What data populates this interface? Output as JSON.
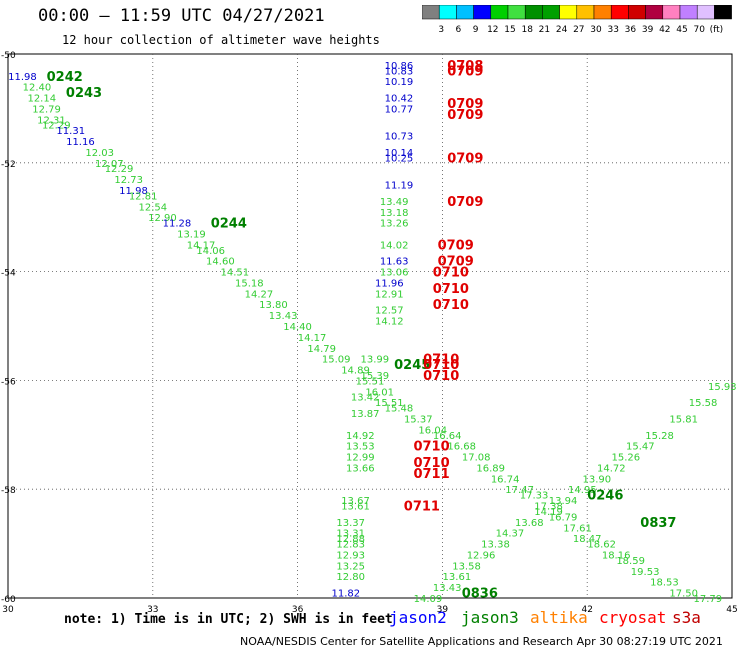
{
  "header": {
    "title": "00:00 – 11:59 UTC 04/27/2021",
    "subtitle": "12 hour collection of altimeter wave heights"
  },
  "color_scale": {
    "colors": [
      "#808080",
      "#00ffff",
      "#00c0ff",
      "#0000ff",
      "#00d000",
      "#40e040",
      "#009000",
      "#00a000",
      "#ffff00",
      "#ffc000",
      "#ff8000",
      "#ff0000",
      "#d00000",
      "#b00040",
      "#ff80c0",
      "#c080ff",
      "#e0c0ff",
      "#000000"
    ],
    "labels": [
      "3",
      "6",
      "9",
      "12",
      "15",
      "18",
      "21",
      "24",
      "27",
      "30",
      "33",
      "36",
      "39",
      "42",
      "45",
      "70",
      "(ft)"
    ]
  },
  "note": "note: 1) Time is in UTC; 2) SWH is in feet",
  "legend": [
    {
      "name": "jason2",
      "color": "#0000ff"
    },
    {
      "name": "jason3",
      "color": "#008000"
    },
    {
      "name": "altika",
      "color": "#ff8000"
    },
    {
      "name": "cryosat",
      "color": "#ff0000"
    },
    {
      "name": "s3a",
      "color": "#c00000"
    }
  ],
  "footer": "NOAA/NESDIS Center for Satellite Applications and Research   Apr 30 08:27:19 UTC 2021",
  "chart_data": {
    "type": "scatter",
    "x_ticks": [
      "30",
      "33",
      "36",
      "39",
      "42",
      "45"
    ],
    "y_ticks": [
      "-50",
      "-52",
      "-54",
      "-56",
      "-58",
      "-60"
    ],
    "xlim": [
      30,
      45
    ],
    "ylim": [
      -60,
      -50
    ],
    "grid": true,
    "colors": {
      "green": "#33cc33",
      "dkgreen": "#008000",
      "blue": "#0000cc",
      "red": "#e00000"
    },
    "points": [
      {
        "x": 30.3,
        "y": -50.4,
        "label": "11.98",
        "c": "blue"
      },
      {
        "x": 30.6,
        "y": -50.6,
        "label": "12.40",
        "c": "green"
      },
      {
        "x": 30.7,
        "y": -50.8,
        "label": "12.14",
        "c": "green"
      },
      {
        "x": 30.8,
        "y": -51.0,
        "label": "12.79",
        "c": "green"
      },
      {
        "x": 30.9,
        "y": -51.2,
        "label": "12.31",
        "c": "green"
      },
      {
        "x": 31.0,
        "y": -51.3,
        "label": "12.29",
        "c": "green"
      },
      {
        "x": 31.3,
        "y": -51.4,
        "label": "11.31",
        "c": "blue"
      },
      {
        "x": 31.5,
        "y": -51.6,
        "label": "11.16",
        "c": "blue"
      },
      {
        "x": 31.9,
        "y": -51.8,
        "label": "12.03",
        "c": "green"
      },
      {
        "x": 32.1,
        "y": -52.0,
        "label": "12.07",
        "c": "green"
      },
      {
        "x": 32.3,
        "y": -52.1,
        "label": "12.29",
        "c": "green"
      },
      {
        "x": 32.5,
        "y": -52.3,
        "label": "12.73",
        "c": "green"
      },
      {
        "x": 32.6,
        "y": -52.5,
        "label": "11.98",
        "c": "blue"
      },
      {
        "x": 32.8,
        "y": -52.6,
        "label": "12.81",
        "c": "green"
      },
      {
        "x": 33.0,
        "y": -52.8,
        "label": "12.54",
        "c": "green"
      },
      {
        "x": 33.2,
        "y": -53.0,
        "label": "12.90",
        "c": "green"
      },
      {
        "x": 33.5,
        "y": -53.1,
        "label": "11.28",
        "c": "blue"
      },
      {
        "x": 33.8,
        "y": -53.3,
        "label": "13.19",
        "c": "green"
      },
      {
        "x": 34.0,
        "y": -53.5,
        "label": "14.17",
        "c": "green"
      },
      {
        "x": 34.2,
        "y": -53.6,
        "label": "14.06",
        "c": "green"
      },
      {
        "x": 34.4,
        "y": -53.8,
        "label": "14.60",
        "c": "green"
      },
      {
        "x": 34.7,
        "y": -54.0,
        "label": "14.51",
        "c": "green"
      },
      {
        "x": 35.0,
        "y": -54.2,
        "label": "15.18",
        "c": "green"
      },
      {
        "x": 35.2,
        "y": -54.4,
        "label": "14.27",
        "c": "green"
      },
      {
        "x": 35.5,
        "y": -54.6,
        "label": "13.80",
        "c": "green"
      },
      {
        "x": 35.7,
        "y": -54.8,
        "label": "13.43",
        "c": "green"
      },
      {
        "x": 36.0,
        "y": -55.0,
        "label": "14.40",
        "c": "green"
      },
      {
        "x": 36.3,
        "y": -55.2,
        "label": "14.17",
        "c": "green"
      },
      {
        "x": 36.5,
        "y": -55.4,
        "label": "14.79",
        "c": "green"
      },
      {
        "x": 36.8,
        "y": -55.6,
        "label": "15.09",
        "c": "green"
      },
      {
        "x": 37.2,
        "y": -55.8,
        "label": "14.89",
        "c": "green"
      },
      {
        "x": 37.5,
        "y": -56.0,
        "label": "15.51",
        "c": "green"
      },
      {
        "x": 37.7,
        "y": -56.2,
        "label": "16.01",
        "c": "green"
      },
      {
        "x": 37.9,
        "y": -56.4,
        "label": "15.51",
        "c": "green"
      },
      {
        "x": 38.1,
        "y": -56.5,
        "label": "15.48",
        "c": "green"
      },
      {
        "x": 38.5,
        "y": -56.7,
        "label": "15.37",
        "c": "green"
      },
      {
        "x": 38.8,
        "y": -56.9,
        "label": "16.04",
        "c": "green"
      },
      {
        "x": 39.1,
        "y": -57.0,
        "label": "16.64",
        "c": "green"
      },
      {
        "x": 39.4,
        "y": -57.2,
        "label": "16.68",
        "c": "green"
      },
      {
        "x": 39.7,
        "y": -57.4,
        "label": "17.08",
        "c": "green"
      },
      {
        "x": 40.0,
        "y": -57.6,
        "label": "16.89",
        "c": "green"
      },
      {
        "x": 40.3,
        "y": -57.8,
        "label": "16.74",
        "c": "green"
      },
      {
        "x": 40.6,
        "y": -58.0,
        "label": "17.47",
        "c": "green"
      },
      {
        "x": 40.9,
        "y": -58.1,
        "label": "17.33",
        "c": "green"
      },
      {
        "x": 41.2,
        "y": -58.3,
        "label": "17.38",
        "c": "green"
      },
      {
        "x": 41.5,
        "y": -58.5,
        "label": "16.79",
        "c": "green"
      },
      {
        "x": 41.8,
        "y": -58.7,
        "label": "17.61",
        "c": "green"
      },
      {
        "x": 42.0,
        "y": -58.9,
        "label": "18.47",
        "c": "green"
      },
      {
        "x": 42.3,
        "y": -59.0,
        "label": "18.62",
        "c": "green"
      },
      {
        "x": 42.6,
        "y": -59.2,
        "label": "18.16",
        "c": "green"
      },
      {
        "x": 42.9,
        "y": -59.3,
        "label": "18.59",
        "c": "green"
      },
      {
        "x": 43.2,
        "y": -59.5,
        "label": "19.53",
        "c": "green"
      },
      {
        "x": 43.6,
        "y": -59.7,
        "label": "18.53",
        "c": "green"
      },
      {
        "x": 44.0,
        "y": -59.9,
        "label": "17.50",
        "c": "green"
      },
      {
        "x": 44.5,
        "y": -60.0,
        "label": "17.79",
        "c": "green"
      },
      {
        "x": 38.7,
        "y": -60.0,
        "label": "14.09",
        "c": "green"
      },
      {
        "x": 39.1,
        "y": -59.8,
        "label": "13.43",
        "c": "green"
      },
      {
        "x": 39.3,
        "y": -59.6,
        "label": "13.61",
        "c": "green"
      },
      {
        "x": 39.5,
        "y": -59.4,
        "label": "13.58",
        "c": "green"
      },
      {
        "x": 39.8,
        "y": -59.2,
        "label": "12.96",
        "c": "green"
      },
      {
        "x": 40.1,
        "y": -59.0,
        "label": "13.38",
        "c": "green"
      },
      {
        "x": 40.4,
        "y": -58.8,
        "label": "14.37",
        "c": "green"
      },
      {
        "x": 40.8,
        "y": -58.6,
        "label": "13.68",
        "c": "green"
      },
      {
        "x": 41.2,
        "y": -58.4,
        "label": "14.19",
        "c": "green"
      },
      {
        "x": 41.5,
        "y": -58.2,
        "label": "13.94",
        "c": "green"
      },
      {
        "x": 41.9,
        "y": -58.0,
        "label": "14.95",
        "c": "green"
      },
      {
        "x": 42.2,
        "y": -57.8,
        "label": "13.90",
        "c": "green"
      },
      {
        "x": 42.5,
        "y": -57.6,
        "label": "14.72",
        "c": "green"
      },
      {
        "x": 42.8,
        "y": -57.4,
        "label": "15.26",
        "c": "green"
      },
      {
        "x": 43.1,
        "y": -57.2,
        "label": "15.47",
        "c": "green"
      },
      {
        "x": 43.5,
        "y": -57.0,
        "label": "15.28",
        "c": "green"
      },
      {
        "x": 44.0,
        "y": -56.7,
        "label": "15.81",
        "c": "green"
      },
      {
        "x": 44.4,
        "y": -56.4,
        "label": "15.58",
        "c": "green"
      },
      {
        "x": 44.8,
        "y": -56.1,
        "label": "15.93",
        "c": "green"
      },
      {
        "x": 38.1,
        "y": -50.2,
        "label": "10.86",
        "c": "blue"
      },
      {
        "x": 38.1,
        "y": -50.3,
        "label": "10.83",
        "c": "blue"
      },
      {
        "x": 38.1,
        "y": -50.5,
        "label": "10.19",
        "c": "blue"
      },
      {
        "x": 38.1,
        "y": -50.8,
        "label": "10.42",
        "c": "blue"
      },
      {
        "x": 38.1,
        "y": -51.0,
        "label": "10.77",
        "c": "blue"
      },
      {
        "x": 38.1,
        "y": -51.5,
        "label": "10.73",
        "c": "blue"
      },
      {
        "x": 38.1,
        "y": -51.8,
        "label": "10.14",
        "c": "blue"
      },
      {
        "x": 38.1,
        "y": -51.9,
        "label": "10.25",
        "c": "blue"
      },
      {
        "x": 38.1,
        "y": -52.4,
        "label": "11.19",
        "c": "blue"
      },
      {
        "x": 38.0,
        "y": -52.7,
        "label": "13.49",
        "c": "green"
      },
      {
        "x": 38.0,
        "y": -52.9,
        "label": "13.18",
        "c": "green"
      },
      {
        "x": 38.0,
        "y": -53.1,
        "label": "13.26",
        "c": "green"
      },
      {
        "x": 38.0,
        "y": -53.5,
        "label": "14.02",
        "c": "green"
      },
      {
        "x": 38.0,
        "y": -53.8,
        "label": "11.63",
        "c": "blue"
      },
      {
        "x": 38.0,
        "y": -54.0,
        "label": "13.06",
        "c": "green"
      },
      {
        "x": 37.9,
        "y": -54.2,
        "label": "11.96",
        "c": "blue"
      },
      {
        "x": 37.9,
        "y": -54.4,
        "label": "12.91",
        "c": "green"
      },
      {
        "x": 37.9,
        "y": -54.7,
        "label": "12.57",
        "c": "green"
      },
      {
        "x": 37.9,
        "y": -54.9,
        "label": "14.12",
        "c": "green"
      },
      {
        "x": 37.6,
        "y": -55.6,
        "label": "13.99",
        "c": "green"
      },
      {
        "x": 37.6,
        "y": -55.9,
        "label": "15.39",
        "c": "green"
      },
      {
        "x": 37.4,
        "y": -56.3,
        "label": "13.42",
        "c": "green"
      },
      {
        "x": 37.4,
        "y": -56.6,
        "label": "13.87",
        "c": "green"
      },
      {
        "x": 37.3,
        "y": -57.0,
        "label": "14.92",
        "c": "green"
      },
      {
        "x": 37.3,
        "y": -57.2,
        "label": "13.53",
        "c": "green"
      },
      {
        "x": 37.3,
        "y": -57.4,
        "label": "12.99",
        "c": "green"
      },
      {
        "x": 37.3,
        "y": -57.6,
        "label": "13.66",
        "c": "green"
      },
      {
        "x": 37.2,
        "y": -58.2,
        "label": "13.67",
        "c": "green"
      },
      {
        "x": 37.2,
        "y": -58.3,
        "label": "13.61",
        "c": "green"
      },
      {
        "x": 37.1,
        "y": -58.6,
        "label": "13.37",
        "c": "green"
      },
      {
        "x": 37.1,
        "y": -58.8,
        "label": "13.31",
        "c": "green"
      },
      {
        "x": 37.1,
        "y": -58.9,
        "label": "12.88",
        "c": "green"
      },
      {
        "x": 37.1,
        "y": -59.0,
        "label": "12.83",
        "c": "green"
      },
      {
        "x": 37.1,
        "y": -59.2,
        "label": "12.93",
        "c": "green"
      },
      {
        "x": 37.1,
        "y": -59.4,
        "label": "13.25",
        "c": "green"
      },
      {
        "x": 37.1,
        "y": -59.6,
        "label": "12.80",
        "c": "green"
      },
      {
        "x": 37.0,
        "y": -59.9,
        "label": "11.82",
        "c": "blue"
      }
    ],
    "tags": [
      {
        "x": 30.8,
        "y": -50.4,
        "label": "0242",
        "c": "dkgreen"
      },
      {
        "x": 31.2,
        "y": -50.7,
        "label": "0243",
        "c": "dkgreen"
      },
      {
        "x": 34.2,
        "y": -53.1,
        "label": "0244",
        "c": "dkgreen"
      },
      {
        "x": 38.0,
        "y": -55.7,
        "label": "0245",
        "c": "dkgreen"
      },
      {
        "x": 42.0,
        "y": -58.1,
        "label": "0246",
        "c": "dkgreen"
      },
      {
        "x": 43.1,
        "y": -58.6,
        "label": "0837",
        "c": "dkgreen"
      },
      {
        "x": 39.4,
        "y": -59.9,
        "label": "0836",
        "c": "dkgreen"
      },
      {
        "x": 39.1,
        "y": -50.2,
        "label": "0708",
        "c": "red"
      },
      {
        "x": 39.1,
        "y": -50.3,
        "label": "0709",
        "c": "red"
      },
      {
        "x": 39.1,
        "y": -50.9,
        "label": "0709",
        "c": "red"
      },
      {
        "x": 39.1,
        "y": -51.1,
        "label": "0709",
        "c": "red"
      },
      {
        "x": 39.1,
        "y": -51.9,
        "label": "0709",
        "c": "red"
      },
      {
        "x": 39.1,
        "y": -52.7,
        "label": "0709",
        "c": "red"
      },
      {
        "x": 38.9,
        "y": -53.5,
        "label": "0709",
        "c": "red"
      },
      {
        "x": 38.9,
        "y": -53.8,
        "label": "0709",
        "c": "red"
      },
      {
        "x": 38.8,
        "y": -54.0,
        "label": "0710",
        "c": "red"
      },
      {
        "x": 38.8,
        "y": -54.3,
        "label": "0710",
        "c": "red"
      },
      {
        "x": 38.8,
        "y": -54.6,
        "label": "0710",
        "c": "red"
      },
      {
        "x": 38.6,
        "y": -55.6,
        "label": "0710",
        "c": "red"
      },
      {
        "x": 38.6,
        "y": -55.7,
        "label": "0710",
        "c": "red"
      },
      {
        "x": 38.6,
        "y": -55.9,
        "label": "0710",
        "c": "red"
      },
      {
        "x": 38.4,
        "y": -57.2,
        "label": "0710",
        "c": "red"
      },
      {
        "x": 38.4,
        "y": -57.5,
        "label": "0710",
        "c": "red"
      },
      {
        "x": 38.4,
        "y": -57.7,
        "label": "0711",
        "c": "red"
      },
      {
        "x": 38.2,
        "y": -58.3,
        "label": "0711",
        "c": "red"
      }
    ]
  }
}
